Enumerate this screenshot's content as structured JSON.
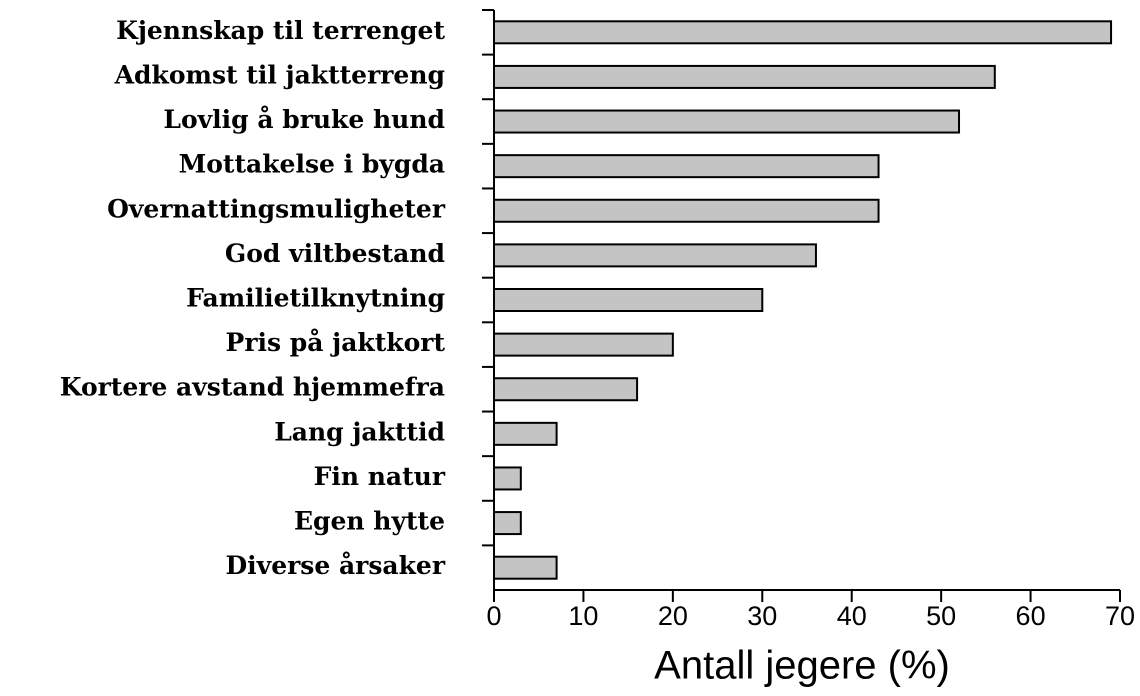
{
  "chart_data": {
    "type": "barh",
    "categories": [
      "Kjennskap til terrenget",
      "Adkomst til jaktterreng",
      "Lovlig å bruke hund",
      "Mottakelse i bygda",
      "Overnattingsmuligheter",
      "God viltbestand",
      "Familietilknytning",
      "Pris på jaktkort",
      "Kortere avstand hjemmefra",
      "Lang jakttid",
      "Fin natur",
      "Egen hytte",
      "Diverse årsaker"
    ],
    "values": [
      69,
      56,
      52,
      43,
      43,
      36,
      30,
      20,
      16,
      7,
      3,
      3,
      7
    ],
    "color": "#c4c4c4",
    "x_label": "Antall jegere (%)",
    "xlim": [
      0,
      70
    ],
    "xticks": [
      0,
      10,
      20,
      30,
      40,
      50,
      60,
      70
    ]
  }
}
